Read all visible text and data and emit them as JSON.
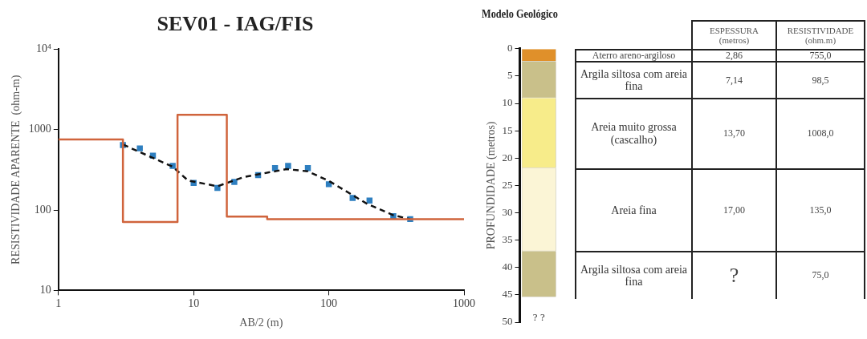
{
  "chart_data": [
    {
      "type": "scatter",
      "title": "SEV01 - IAG/FIS",
      "xlabel": "AB/2 (m)",
      "ylabel": "RESISTIVIDADE APARENTE  (ohm-m)",
      "log": "xy",
      "grid": false,
      "legend": false,
      "marker": "square",
      "xlim": [
        1,
        1000
      ],
      "xticks": [
        1,
        10,
        100,
        1000
      ],
      "ylim": [
        10,
        10000
      ],
      "yticks": [
        10,
        100,
        1000,
        {
          "value": 10000,
          "label": "10⁴"
        }
      ],
      "series": [
        {
          "type": "step",
          "color": "#d0643c",
          "marker": "none",
          "x": [
            1,
            3,
            7.6,
            17.6,
            35,
            1000
          ],
          "values": [
            753,
            71,
            1520,
            83,
            77,
            77
          ]
        },
        {
          "type": "line",
          "color": "#111111",
          "marker": "none",
          "line_style": "dashed",
          "x": [
            3,
            7,
            9.1,
            15,
            23.4,
            48.6,
            70,
            100,
            189,
            300,
            400
          ],
          "values": [
            650,
            345,
            232,
            197,
            256,
            322,
            302,
            230,
            121,
            86,
            77
          ]
        },
        {
          "type": "scatter",
          "color": "#2e7fc0",
          "x": [
            3,
            4,
            5,
            7,
            10,
            15,
            20,
            30,
            40,
            50,
            70,
            100,
            150,
            200,
            300,
            400
          ],
          "values": [
            640,
            583,
            473,
            353,
            217,
            188,
            223,
            271,
            331,
            353,
            331,
            209,
            141,
            131,
            84,
            77
          ]
        }
      ]
    },
    {
      "type": "bar",
      "title": "Modelo Geológico",
      "ylabel": "PROFUNDIDADE (metros)",
      "stacked": true,
      "legend": false,
      "grid": false,
      "tick_labels": "y",
      "categories": [
        null
      ],
      "ylim": [
        50,
        0
      ],
      "yticks": [
        0,
        5,
        10,
        15,
        20,
        25,
        30,
        35,
        40,
        45,
        50
      ],
      "annotations": [
        "? ?"
      ],
      "series": [
        {
          "color": "#e0902a",
          "values": [
            2.3
          ]
        },
        {
          "color": "#c9c08a",
          "values": [
            6.7
          ]
        },
        {
          "color": "#f7ec8a",
          "values": [
            12.8
          ]
        },
        {
          "color": "#fbf5d6",
          "values": [
            15.2
          ]
        },
        {
          "color": "#c9c08a",
          "values": [
            8.4
          ]
        }
      ]
    },
    {
      "type": "other",
      "categories": [
        "Aterro areno-argiloso",
        "Argila siltosa com areia fina",
        "Areia muito grossa (cascalho)",
        "Areia fina",
        "Argila siltosa com areia fina"
      ],
      "series": [
        {
          "name": "ESPESSURA (metros)",
          "values": [
            2.86,
            7.14,
            13.7,
            17.0,
            null
          ],
          "value_labels": [
            "2,86",
            "7,14",
            "13,70",
            "17,00",
            "?"
          ]
        },
        {
          "name": "RESISTIVIDADE (ohm.m)",
          "values": [
            755.0,
            98.5,
            1008.0,
            135.0,
            75.0
          ],
          "value_labels": [
            "755,0",
            "98,5",
            "1008,0",
            "135,0",
            "75,0"
          ]
        }
      ]
    }
  ]
}
